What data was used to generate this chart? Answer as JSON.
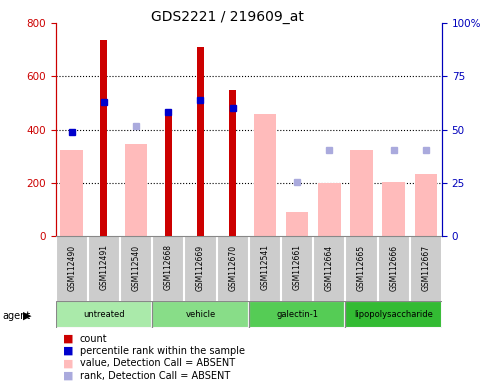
{
  "title": "GDS2221 / 219609_at",
  "samples": [
    "GSM112490",
    "GSM112491",
    "GSM112540",
    "GSM112668",
    "GSM112669",
    "GSM112670",
    "GSM112541",
    "GSM112661",
    "GSM112664",
    "GSM112665",
    "GSM112666",
    "GSM112667"
  ],
  "groups": [
    {
      "label": "untreated",
      "color": "#aaeaaa",
      "indices": [
        0,
        1,
        2
      ]
    },
    {
      "label": "vehicle",
      "color": "#88dd88",
      "indices": [
        3,
        4,
        5
      ]
    },
    {
      "label": "galectin-1",
      "color": "#55cc55",
      "indices": [
        6,
        7,
        8
      ]
    },
    {
      "label": "lipopolysaccharide",
      "color": "#33bb33",
      "indices": [
        9,
        10,
        11
      ]
    }
  ],
  "count_values": [
    null,
    735,
    null,
    468,
    710,
    548,
    null,
    null,
    null,
    null,
    null,
    null
  ],
  "rank_values": [
    390,
    505,
    null,
    465,
    510,
    482,
    null,
    null,
    null,
    null,
    null,
    null
  ],
  "absent_value": [
    325,
    null,
    345,
    null,
    null,
    null,
    460,
    90,
    200,
    325,
    205,
    235
  ],
  "absent_rank": [
    null,
    null,
    415,
    null,
    null,
    null,
    null,
    205,
    325,
    null,
    325,
    325
  ],
  "ylim_left": [
    0,
    800
  ],
  "ylim_right": [
    0,
    100
  ],
  "yticks_left": [
    0,
    200,
    400,
    600,
    800
  ],
  "yticks_right": [
    0,
    25,
    50,
    75,
    100
  ],
  "ytick_right_labels": [
    "0",
    "25",
    "50",
    "75",
    "100%"
  ],
  "count_color": "#cc0000",
  "rank_color": "#0000cc",
  "absent_val_color": "#ffbbbb",
  "absent_rnk_color": "#aaaadd",
  "left_axis_color": "#cc0000",
  "right_axis_color": "#0000bb",
  "legend_items": [
    {
      "label": "count",
      "color": "#cc0000"
    },
    {
      "label": "percentile rank within the sample",
      "color": "#0000cc"
    },
    {
      "label": "value, Detection Call = ABSENT",
      "color": "#ffbbbb"
    },
    {
      "label": "rank, Detection Call = ABSENT",
      "color": "#aaaadd"
    }
  ]
}
